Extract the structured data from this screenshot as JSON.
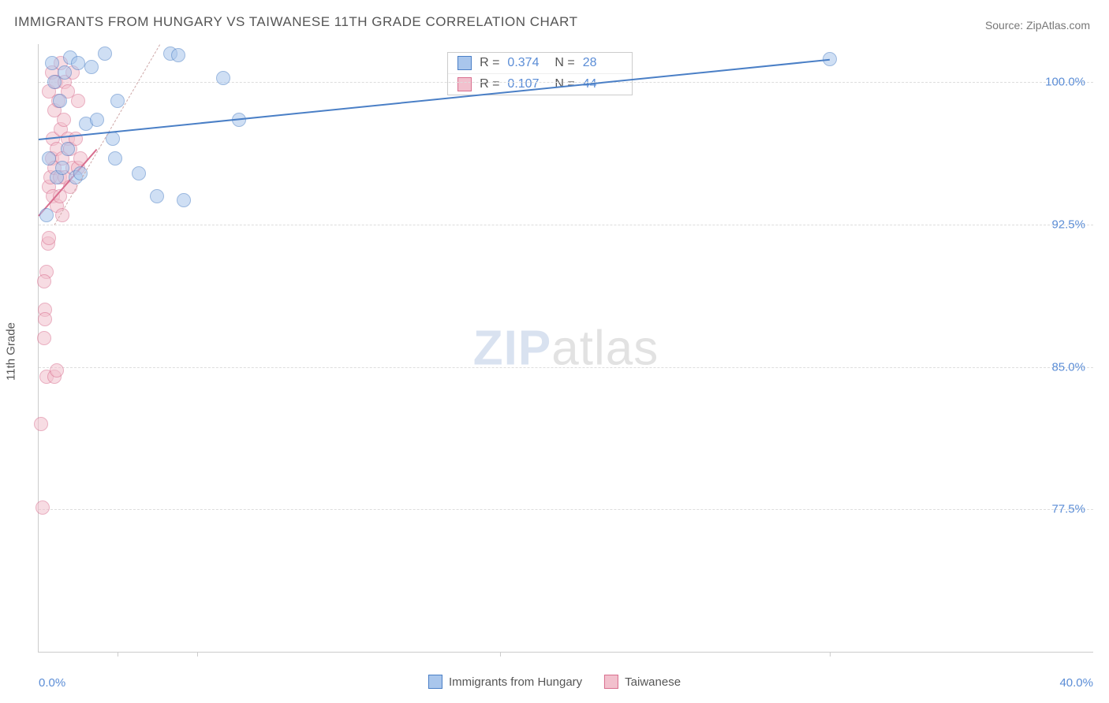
{
  "title": "IMMIGRANTS FROM HUNGARY VS TAIWANESE 11TH GRADE CORRELATION CHART",
  "source_label": "Source:",
  "source_name": "ZipAtlas.com",
  "watermark_a": "ZIP",
  "watermark_b": "atlas",
  "y_axis_label": "11th Grade",
  "chart": {
    "type": "scatter",
    "background_color": "#ffffff",
    "grid_color": "#dddddd",
    "axis_color": "#cccccc",
    "tick_label_color": "#5b8dd6",
    "xlim": [
      0.0,
      40.0
    ],
    "ylim": [
      70.0,
      102.0
    ],
    "x_ticks": [
      0.0,
      40.0
    ],
    "x_tick_labels": [
      "0.0%",
      "40.0%"
    ],
    "x_minor_ticks": [
      3.0,
      6.0,
      17.5,
      30.0
    ],
    "y_gridlines": [
      77.5,
      85.0,
      92.5,
      100.0
    ],
    "y_tick_labels": [
      "77.5%",
      "85.0%",
      "92.5%",
      "100.0%"
    ],
    "point_radius": 9,
    "point_opacity": 0.55,
    "series": [
      {
        "key": "hungary",
        "label": "Immigrants from Hungary",
        "color_fill": "#a9c6ec",
        "color_stroke": "#4a7fc6",
        "R": "0.374",
        "N": "28",
        "trend": {
          "x1": 0.0,
          "y1": 97.0,
          "x2": 30.0,
          "y2": 101.2,
          "dash": "solid",
          "stroke": "#4a7fc6",
          "width": 2
        },
        "trend_ext": {
          "x1": 0.6,
          "y1": 92.5,
          "x2": 4.6,
          "y2": 102.0,
          "dash": "dashed",
          "stroke": "#cfa9a9",
          "width": 1
        },
        "points": [
          [
            0.3,
            93.0
          ],
          [
            0.4,
            96.0
          ],
          [
            0.5,
            101.0
          ],
          [
            0.6,
            100.0
          ],
          [
            0.7,
            95.0
          ],
          [
            0.8,
            99.0
          ],
          [
            0.9,
            95.5
          ],
          [
            1.0,
            100.5
          ],
          [
            1.1,
            96.5
          ],
          [
            1.2,
            101.3
          ],
          [
            1.4,
            95.0
          ],
          [
            1.5,
            101.0
          ],
          [
            1.6,
            95.2
          ],
          [
            1.8,
            97.8
          ],
          [
            2.0,
            100.8
          ],
          [
            2.2,
            98.0
          ],
          [
            2.5,
            101.5
          ],
          [
            2.8,
            97.0
          ],
          [
            2.9,
            96.0
          ],
          [
            3.0,
            99.0
          ],
          [
            3.8,
            95.2
          ],
          [
            4.5,
            94.0
          ],
          [
            5.0,
            101.5
          ],
          [
            5.3,
            101.4
          ],
          [
            5.5,
            93.8
          ],
          [
            7.0,
            100.2
          ],
          [
            7.6,
            98.0
          ],
          [
            30.0,
            101.2
          ]
        ]
      },
      {
        "key": "taiwanese",
        "label": "Taiwanese",
        "color_fill": "#f2c0cd",
        "color_stroke": "#d96f8f",
        "R": "0.107",
        "N": "44",
        "trend": {
          "x1": 0.0,
          "y1": 93.0,
          "x2": 2.2,
          "y2": 96.5,
          "dash": "solid",
          "stroke": "#d96f8f",
          "width": 2
        },
        "points": [
          [
            0.1,
            82.0
          ],
          [
            0.15,
            77.6
          ],
          [
            0.2,
            86.5
          ],
          [
            0.25,
            88.0
          ],
          [
            0.3,
            84.5
          ],
          [
            0.3,
            90.0
          ],
          [
            0.35,
            91.5
          ],
          [
            0.4,
            94.5
          ],
          [
            0.4,
            99.5
          ],
          [
            0.45,
            95.0
          ],
          [
            0.5,
            96.0
          ],
          [
            0.5,
            100.5
          ],
          [
            0.55,
            94.0
          ],
          [
            0.55,
            97.0
          ],
          [
            0.6,
            95.5
          ],
          [
            0.6,
            98.5
          ],
          [
            0.65,
            100.0
          ],
          [
            0.7,
            93.5
          ],
          [
            0.7,
            96.5
          ],
          [
            0.75,
            99.0
          ],
          [
            0.8,
            95.0
          ],
          [
            0.8,
            94.0
          ],
          [
            0.85,
            97.5
          ],
          [
            0.85,
            101.0
          ],
          [
            0.9,
            96.0
          ],
          [
            0.9,
            93.0
          ],
          [
            0.95,
            98.0
          ],
          [
            1.0,
            100.0
          ],
          [
            1.0,
            95.0
          ],
          [
            1.1,
            97.0
          ],
          [
            1.1,
            99.5
          ],
          [
            1.2,
            94.5
          ],
          [
            1.2,
            96.5
          ],
          [
            1.3,
            95.5
          ],
          [
            1.3,
            100.5
          ],
          [
            1.4,
            97.0
          ],
          [
            1.5,
            95.5
          ],
          [
            1.5,
            99.0
          ],
          [
            1.6,
            96.0
          ],
          [
            0.6,
            84.5
          ],
          [
            0.7,
            84.8
          ],
          [
            0.2,
            89.5
          ],
          [
            0.25,
            87.5
          ],
          [
            0.4,
            91.8
          ]
        ]
      }
    ]
  },
  "legend_rn": {
    "r_prefix": "R =",
    "n_prefix": "N ="
  }
}
